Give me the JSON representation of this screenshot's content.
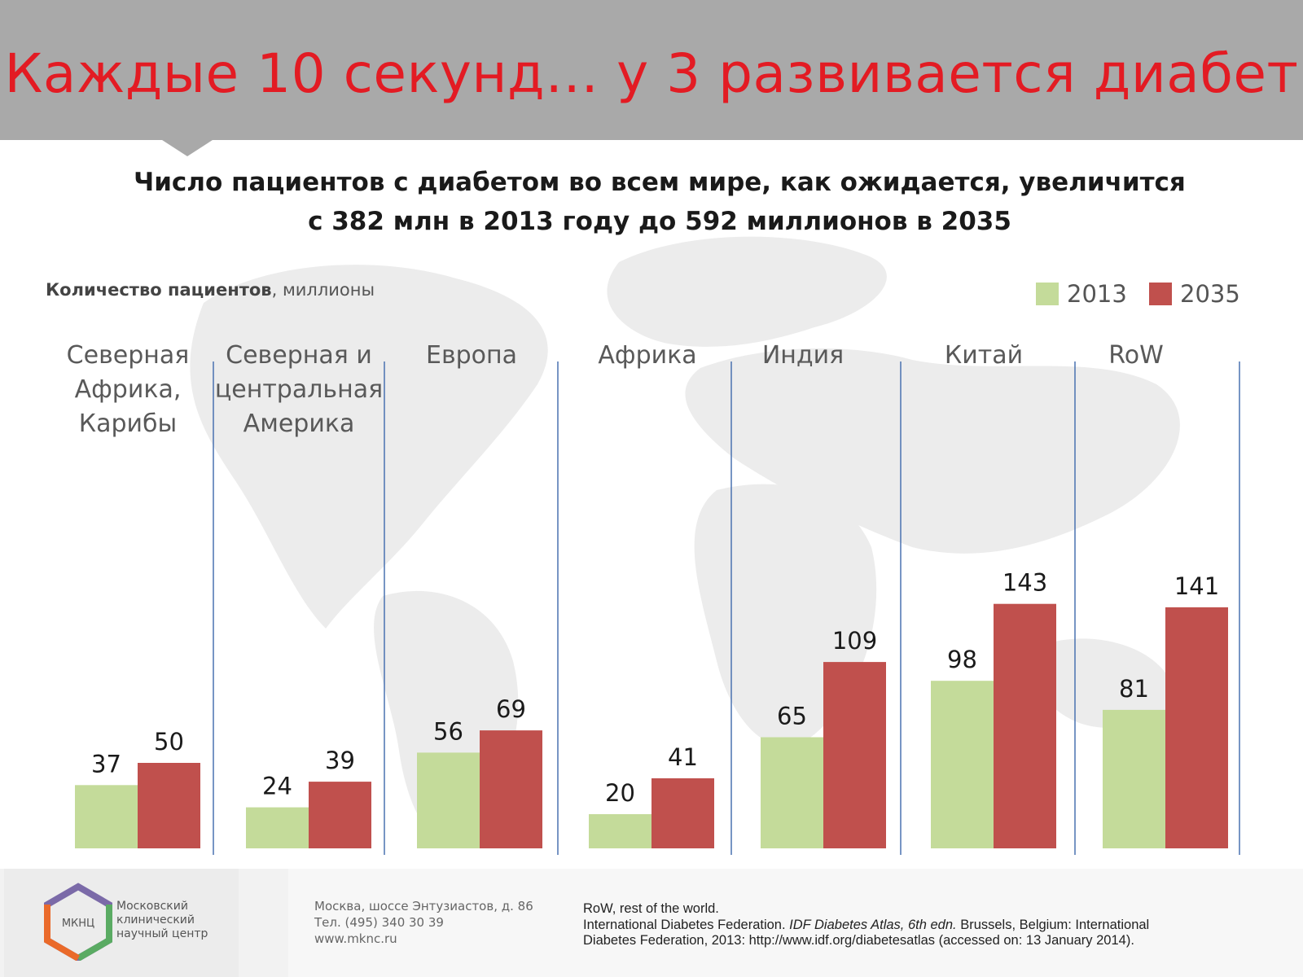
{
  "header": {
    "title": "Каждые 10 секунд… у 3 развивается диабет"
  },
  "subtitle": {
    "line1": "Число пациентов с диабетом во всем мире, как ожидается, увеличится",
    "line2": "с 382 млн в 2013 году до 592 миллионов в 2035"
  },
  "colors": {
    "series_2013": "#c4db9a",
    "series_2035": "#c0504d",
    "title_red": "#e31b23",
    "separator": "#4a72b0"
  },
  "chart_data": {
    "type": "bar",
    "ylabel_bold": "Количество пациентов",
    "ylabel_rest": ", миллионы",
    "legend_placement": "top-right",
    "categories": [
      "Северная Африка, Карибы",
      "Северная и центральная Америка",
      "Европа",
      "Африка",
      "Индия",
      "Китай",
      "RoW"
    ],
    "category_lines": [
      [
        "Северная",
        "Африка,",
        "Карибы"
      ],
      [
        "Северная и",
        "центральная",
        "Америка"
      ],
      [
        "Европа"
      ],
      [
        "Африка"
      ],
      [
        "Индия"
      ],
      [
        "Китай"
      ],
      [
        "RoW"
      ]
    ],
    "series": [
      {
        "name": "2013",
        "values": [
          37,
          24,
          56,
          20,
          65,
          98,
          81
        ]
      },
      {
        "name": "2035",
        "values": [
          50,
          39,
          69,
          41,
          109,
          143,
          141
        ]
      }
    ],
    "ylim": [
      0,
      143
    ],
    "grid": false
  },
  "footer": {
    "logo_abbr": "МКНЦ",
    "logo_lines": [
      "Московский",
      "клинический",
      "научный центр"
    ],
    "address_lines": [
      "Москва, шоссе Энтузиастов, д. 86",
      "Тел. (495) 340 30 39",
      "www.mknc.ru"
    ],
    "note_row": "RoW, rest of the world.",
    "ref_part1": "International Diabetes Federation. ",
    "ref_italic": "IDF Diabetes Atlas, 6th edn.",
    "ref_part2": " Brussels, Belgium: International",
    "ref_line2": "Diabetes Federation, 2013: http://www.idf.org/diabetesatlas (accessed on: 13 January 2014)."
  }
}
